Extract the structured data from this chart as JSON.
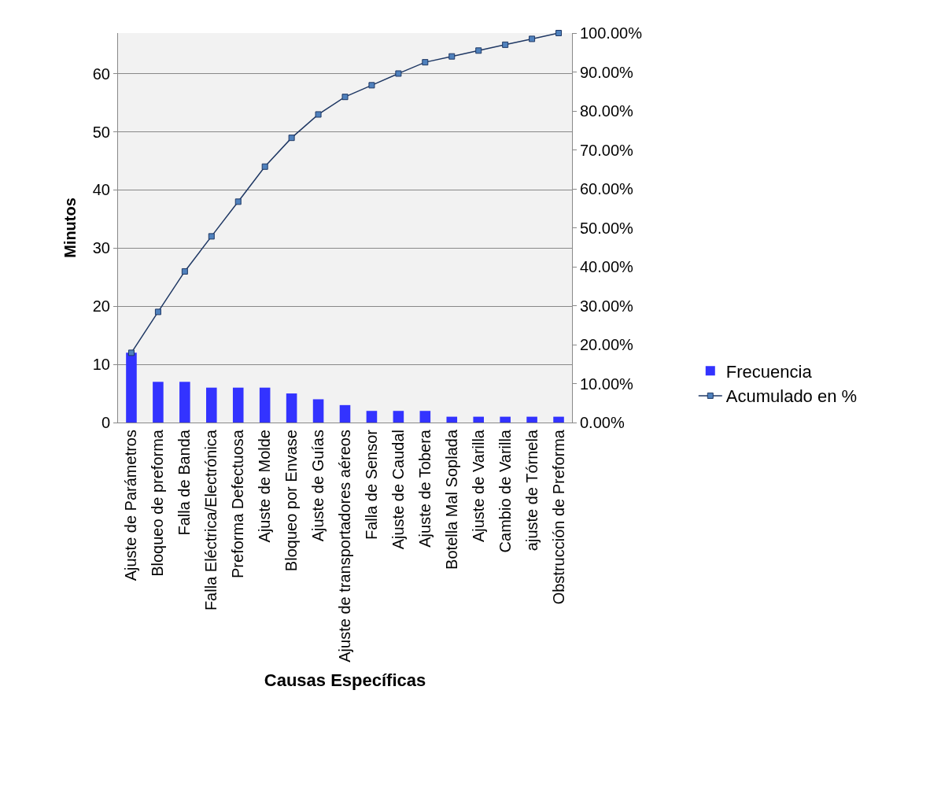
{
  "chart_data": {
    "type": "bar",
    "xlabel": "Causas Específicas",
    "ylabel": "Minutos",
    "categories": [
      "Ajuste de Parámetros",
      "Bloqueo de preforma",
      "Falla de Banda",
      "Falla Eléctrica/Electrónica",
      "Preforma Defectuosa",
      "Ajuste de Molde",
      "Bloqueo por Envase",
      "Ajuste de Guías",
      "Ajuste de transportadores aéreos",
      "Falla de Sensor",
      "Ajuste de Caudal",
      "Ajuste de Tobera",
      "Botella Mal Soplada",
      "Ajuste de Varilla",
      "Cambio de Varilla",
      "ajuste de Tórnela",
      "Obstrucción de Preforma"
    ],
    "series": [
      {
        "name": "Frecuencia",
        "color": "#3333ff",
        "values": [
          12,
          7,
          7,
          6,
          6,
          6,
          5,
          4,
          3,
          2,
          2,
          2,
          1,
          1,
          1,
          1,
          1
        ]
      },
      {
        "name": "Acumulado en %",
        "type": "line",
        "axis": "y2",
        "color": "#1f3864",
        "marker": "square",
        "values": [
          17.9,
          28.4,
          38.8,
          47.8,
          56.7,
          65.7,
          73.1,
          79.1,
          83.6,
          86.6,
          89.6,
          92.5,
          94.0,
          95.5,
          97.0,
          98.5,
          100.0
        ]
      }
    ],
    "ylim": [
      0,
      67
    ],
    "yticks": [
      0,
      10,
      20,
      30,
      40,
      50,
      60
    ],
    "y2lim": [
      0,
      100
    ],
    "y2ticks": [
      {
        "value": 0,
        "label": "0.00%"
      },
      {
        "value": 10,
        "label": "10.00%"
      },
      {
        "value": 20,
        "label": "20.00%"
      },
      {
        "value": 30,
        "label": "30.00%"
      },
      {
        "value": 40,
        "label": "40.00%"
      },
      {
        "value": 50,
        "label": "50.00%"
      },
      {
        "value": 60,
        "label": "60.00%"
      },
      {
        "value": 70,
        "label": "70.00%"
      },
      {
        "value": 80,
        "label": "80.00%"
      },
      {
        "value": 90,
        "label": "90.00%"
      },
      {
        "value": 100,
        "label": "100.00%"
      }
    ],
    "grid": "y",
    "legend": "right"
  }
}
